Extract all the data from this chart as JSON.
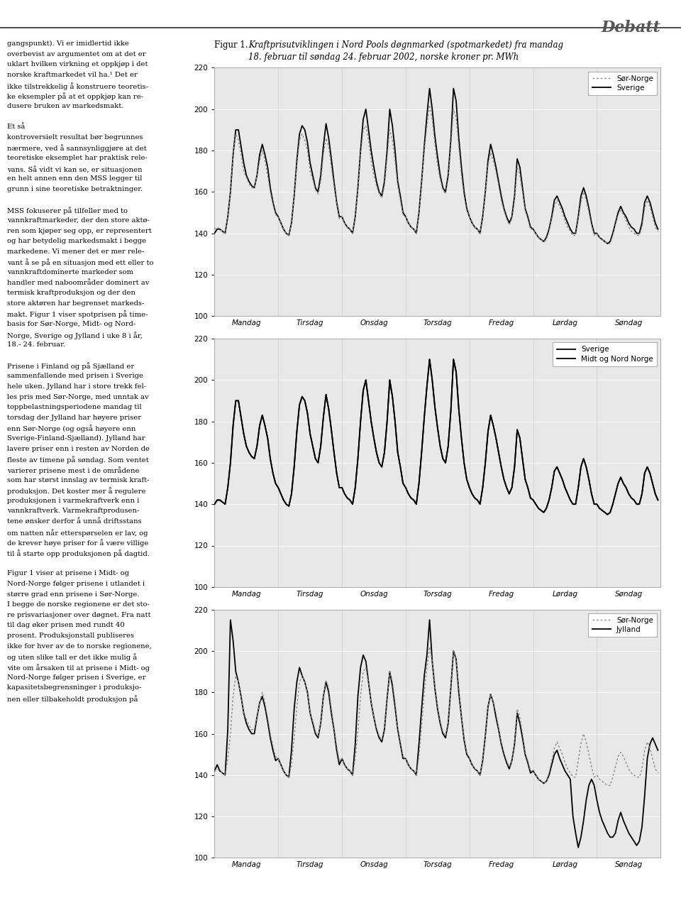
{
  "title_label": "Figur 1.",
  "title_text_line1": "Kraftprisutviklingen i Nord Pools døgnmarked (spotmarkedet) fra mandag",
  "title_text_line2": "18. februar til søndag 24. februar 2002, norske kroner pr. MWh",
  "days": [
    "Mandag",
    "Tirsdag",
    "Onsdag",
    "Torsdag",
    "Fredag",
    "Lørdag",
    "Søndag"
  ],
  "days_chart1": [
    "Mandag",
    "Tirsdag",
    "Onsdag",
    "Torsdag",
    "Fredag",
    "Lørdag",
    "Søndag"
  ],
  "days_chart2": [
    "Mandag",
    "Tirsdag",
    "Onsdag",
    "Torsdag",
    "Fredag",
    "Lørdag",
    "Søndag"
  ],
  "days_chart3": [
    "Mandag",
    "Tirsdag",
    "Onsdag",
    "Torsdag",
    "Fredag",
    "Lørdag",
    "Søndag"
  ],
  "ylim": [
    100,
    220
  ],
  "yticks": [
    100,
    120,
    140,
    160,
    180,
    200,
    220
  ],
  "background_color": "#ffffff",
  "plot_bg_color": "#e8e8e8",
  "grid_color": "#ffffff",
  "solid_color": "#000000",
  "dotted_color": "#888888",
  "plot1_legend": [
    "Sør-Norge",
    "Sverige"
  ],
  "plot1_s1_style": "dotted",
  "plot1_s2_style": "solid",
  "plot2_legend": [
    "Sverige",
    "Midt og Nord Norge"
  ],
  "plot2_s1_style": "solid",
  "plot2_s2_style": "solid",
  "plot3_legend": [
    "Sør-Norge",
    "Jylland"
  ],
  "plot3_s1_style": "dotted",
  "plot3_s2_style": "solid",
  "left_col_texts": [
    "gangspunkt). Vi er imidlertid ikke",
    "overbevist av argumentet om at det er",
    "uklart hvilken virkning et oppkjøp i det",
    "norske kraftmarkedet vil ha.¹ Det er",
    "ikke tilstrekkelig å konstruere teoretis-",
    "ke eksempler på at et oppkjøp kan re-",
    "dusere bruken av markedsmakt.",
    "",
    "Et så",
    "kontroversielt resultat bør begrunnes",
    "nærmere, ved å sannsynliggjøre at det",
    "teoretiske eksemplet har praktisk rele-",
    "vans. Så vidt vi kan se, er situasjonen",
    "en helt annen enn den MSS legger til",
    "grunn i sine teoretiske betraktninger.",
    "",
    "MSS fokuserer på tilfeller med to",
    "vannkraftmarkeder, der den store aktø-",
    "ren som kjøper seg opp, er representert",
    "og har betydelig markedsmakt i begge",
    "markedene. Vi mener det er mer rele-",
    "vant å se på en situasjon med ett eller to",
    "vannkraftdominerte markeder som",
    "handler med naboområder dominert av",
    "termisk kraftproduksjon og der den",
    "store aktøren har begrenset markeds-",
    "makt. Figur 1 viser spotprisen på time-",
    "basis for Sør-Norge, Midt- og Nord-",
    "Norge, Sverige og Jylland i uke 8 i år,",
    "18.- 24. februar.",
    "",
    "Prisene i Finland og på Sjælland er",
    "sammenfallende med prisen i Sverige",
    "hele uken. Jylland har i store trekk fel-",
    "les pris med Sør-Norge, med unntak av",
    "toppbelastningsperiodene mandag til",
    "torsdag der Jylland har høyere priser",
    "enn Sør-Norge (og også høyere enn",
    "Sverige-Finland-Sjælland). Jylland har",
    "lavere priser enn i resten av Norden de",
    "fleste av timene på søndag. Som ventet",
    "varierer prisene mest i de områdene",
    "som har størst innslag av termisk kraft-",
    "produksjon. Det koster mer å regulere",
    "produksjonen i varmekraftverk enn i",
    "vannkraftverk. Varmekraftprodusen-",
    "tene ønsker derfor å unnå driftsstans",
    "om natten når etterspørselen er lav, og",
    "de krever høye priser for å være villige",
    "til å starte opp produksjonen på dagtid.",
    "",
    "Figur 1 viser at prisene i Midt- og",
    "Nord-Norge følger prisene i utlandet i",
    "større grad enn prisene i Sør-Norge.",
    "I begge de norske regionene er det sto-",
    "re prisvariasjoner over døgnet. Fra natt",
    "til dag øker prisen med rundt 40",
    "prosent. Produksjonstall publiseres",
    "ikke for hver av de to norske regionene,",
    "og uten slike tall er det ikke mulig å",
    "vite om årsaken til at prisene i Midt- og",
    "Nord-Norge følger prisen i Sverige, er",
    "kapasitetsbegrensninger i produksjo-",
    "nen eller tilbakeholdt produksjon på"
  ],
  "debatt_header": "Debatt",
  "chart1_s1": [
    142,
    143,
    142,
    141,
    140,
    148,
    160,
    178,
    188,
    185,
    178,
    170,
    167,
    164,
    162,
    162,
    168,
    175,
    180,
    175,
    168,
    160,
    154,
    149,
    148,
    145,
    142,
    140,
    139,
    145,
    158,
    173,
    185,
    188,
    185,
    180,
    170,
    166,
    161,
    159,
    165,
    178,
    186,
    182,
    172,
    163,
    154,
    147,
    148,
    145,
    143,
    142,
    140,
    148,
    161,
    178,
    190,
    192,
    185,
    175,
    168,
    163,
    159,
    157,
    163,
    177,
    190,
    185,
    175,
    163,
    156,
    149,
    148,
    145,
    143,
    142,
    140,
    149,
    164,
    180,
    192,
    202,
    195,
    183,
    173,
    166,
    161,
    159,
    166,
    182,
    200,
    196,
    182,
    168,
    158,
    151,
    148,
    145,
    143,
    142,
    140,
    147,
    159,
    173,
    179,
    175,
    170,
    163,
    156,
    151,
    147,
    144,
    147,
    156,
    172,
    168,
    160,
    151,
    147,
    142,
    142,
    140,
    138,
    137,
    136,
    137,
    141,
    147,
    153,
    156,
    153,
    150,
    146,
    143,
    141,
    139,
    139,
    147,
    155,
    160,
    156,
    150,
    144,
    139,
    140,
    138,
    137,
    136,
    135,
    135,
    139,
    144,
    149,
    151,
    149,
    146,
    143,
    141,
    140,
    139,
    139,
    143,
    152,
    156,
    153,
    148,
    143,
    141
  ],
  "chart1_s2": [
    140,
    142,
    142,
    141,
    140,
    148,
    160,
    178,
    190,
    190,
    182,
    174,
    168,
    165,
    163,
    162,
    168,
    178,
    183,
    178,
    172,
    162,
    155,
    150,
    148,
    145,
    142,
    140,
    139,
    145,
    158,
    175,
    188,
    192,
    190,
    184,
    174,
    168,
    162,
    160,
    168,
    182,
    193,
    186,
    176,
    165,
    155,
    148,
    148,
    145,
    143,
    142,
    140,
    148,
    162,
    180,
    195,
    200,
    190,
    180,
    172,
    165,
    160,
    158,
    165,
    180,
    200,
    192,
    180,
    165,
    158,
    150,
    148,
    145,
    143,
    142,
    140,
    150,
    165,
    182,
    197,
    210,
    200,
    187,
    177,
    168,
    162,
    160,
    168,
    185,
    210,
    204,
    186,
    172,
    160,
    152,
    148,
    145,
    143,
    142,
    140,
    148,
    160,
    175,
    183,
    178,
    172,
    165,
    158,
    152,
    148,
    145,
    148,
    158,
    176,
    172,
    162,
    152,
    148,
    143,
    142,
    140,
    138,
    137,
    136,
    138,
    142,
    148,
    156,
    158,
    155,
    152,
    148,
    145,
    142,
    140,
    140,
    148,
    158,
    162,
    158,
    152,
    145,
    140,
    140,
    138,
    137,
    136,
    135,
    136,
    140,
    145,
    150,
    153,
    150,
    148,
    145,
    143,
    142,
    140,
    140,
    145,
    155,
    158,
    155,
    150,
    145,
    142
  ],
  "chart2_s1": [
    140,
    142,
    142,
    141,
    140,
    148,
    160,
    178,
    190,
    190,
    182,
    174,
    168,
    165,
    163,
    162,
    168,
    178,
    183,
    178,
    172,
    162,
    155,
    150,
    148,
    145,
    142,
    140,
    139,
    145,
    158,
    175,
    188,
    192,
    190,
    184,
    174,
    168,
    162,
    160,
    168,
    182,
    193,
    186,
    176,
    165,
    155,
    148,
    148,
    145,
    143,
    142,
    140,
    148,
    162,
    180,
    195,
    200,
    190,
    180,
    172,
    165,
    160,
    158,
    165,
    180,
    200,
    192,
    180,
    165,
    158,
    150,
    148,
    145,
    143,
    142,
    140,
    150,
    165,
    182,
    197,
    210,
    200,
    187,
    177,
    168,
    162,
    160,
    168,
    185,
    210,
    204,
    186,
    172,
    160,
    152,
    148,
    145,
    143,
    142,
    140,
    148,
    160,
    175,
    183,
    178,
    172,
    165,
    158,
    152,
    148,
    145,
    148,
    158,
    176,
    172,
    162,
    152,
    148,
    143,
    142,
    140,
    138,
    137,
    136,
    138,
    142,
    148,
    156,
    158,
    155,
    152,
    148,
    145,
    142,
    140,
    140,
    148,
    158,
    162,
    158,
    152,
    145,
    140,
    140,
    138,
    137,
    136,
    135,
    136,
    140,
    145,
    150,
    153,
    150,
    148,
    145,
    143,
    142,
    140,
    140,
    145,
    155,
    158,
    155,
    150,
    145,
    142
  ],
  "chart2_s2": [
    140,
    142,
    142,
    141,
    140,
    148,
    160,
    178,
    190,
    190,
    182,
    174,
    168,
    165,
    163,
    162,
    168,
    178,
    183,
    178,
    172,
    162,
    155,
    150,
    148,
    145,
    142,
    140,
    139,
    145,
    158,
    175,
    188,
    192,
    190,
    184,
    174,
    168,
    162,
    160,
    168,
    182,
    193,
    186,
    176,
    165,
    155,
    148,
    148,
    145,
    143,
    142,
    140,
    148,
    162,
    180,
    195,
    200,
    190,
    180,
    172,
    165,
    160,
    158,
    165,
    180,
    200,
    192,
    180,
    165,
    158,
    150,
    148,
    145,
    143,
    142,
    140,
    150,
    165,
    182,
    197,
    210,
    200,
    187,
    177,
    168,
    162,
    160,
    168,
    185,
    210,
    204,
    186,
    172,
    160,
    152,
    148,
    145,
    143,
    142,
    140,
    148,
    160,
    175,
    183,
    178,
    172,
    165,
    158,
    152,
    148,
    145,
    148,
    158,
    176,
    172,
    162,
    152,
    148,
    143,
    142,
    140,
    138,
    137,
    136,
    138,
    142,
    148,
    156,
    158,
    155,
    152,
    148,
    145,
    142,
    140,
    140,
    148,
    158,
    162,
    158,
    152,
    145,
    140,
    140,
    138,
    137,
    136,
    135,
    136,
    140,
    145,
    150,
    153,
    150,
    148,
    145,
    143,
    142,
    140,
    140,
    145,
    155,
    158,
    155,
    150,
    145,
    142
  ],
  "chart3_s1": [
    142,
    143,
    142,
    141,
    140,
    148,
    160,
    178,
    188,
    185,
    178,
    170,
    167,
    164,
    162,
    162,
    168,
    175,
    180,
    175,
    168,
    160,
    154,
    149,
    148,
    145,
    142,
    140,
    139,
    145,
    158,
    173,
    185,
    188,
    185,
    180,
    170,
    166,
    161,
    159,
    165,
    178,
    186,
    182,
    172,
    163,
    154,
    147,
    148,
    145,
    143,
    142,
    140,
    148,
    161,
    178,
    190,
    192,
    185,
    175,
    168,
    163,
    159,
    157,
    163,
    177,
    190,
    185,
    175,
    163,
    156,
    149,
    148,
    145,
    143,
    142,
    140,
    149,
    164,
    180,
    192,
    202,
    195,
    183,
    173,
    166,
    161,
    159,
    166,
    182,
    200,
    196,
    182,
    168,
    158,
    151,
    148,
    145,
    143,
    142,
    140,
    147,
    159,
    173,
    179,
    175,
    170,
    163,
    156,
    151,
    147,
    144,
    147,
    156,
    172,
    168,
    160,
    151,
    147,
    142,
    142,
    140,
    138,
    137,
    136,
    137,
    141,
    147,
    153,
    156,
    153,
    150,
    146,
    143,
    141,
    139,
    139,
    147,
    155,
    160,
    156,
    150,
    144,
    139,
    140,
    138,
    137,
    136,
    135,
    135,
    139,
    144,
    149,
    151,
    149,
    146,
    143,
    141,
    140,
    139,
    139,
    143,
    152,
    156,
    153,
    148,
    143,
    141
  ],
  "chart3_s2": [
    142,
    145,
    142,
    141,
    140,
    162,
    215,
    205,
    190,
    185,
    178,
    170,
    165,
    162,
    160,
    160,
    168,
    175,
    178,
    173,
    166,
    158,
    152,
    147,
    148,
    145,
    142,
    140,
    139,
    152,
    172,
    185,
    192,
    188,
    185,
    180,
    170,
    165,
    160,
    158,
    165,
    178,
    185,
    180,
    170,
    162,
    152,
    145,
    148,
    145,
    143,
    142,
    140,
    155,
    178,
    192,
    198,
    195,
    185,
    175,
    168,
    162,
    158,
    156,
    162,
    177,
    190,
    183,
    173,
    162,
    155,
    148,
    148,
    145,
    143,
    142,
    140,
    155,
    172,
    188,
    198,
    215,
    195,
    182,
    172,
    165,
    160,
    158,
    165,
    182,
    200,
    196,
    180,
    168,
    157,
    150,
    148,
    145,
    143,
    142,
    140,
    147,
    159,
    173,
    179,
    175,
    168,
    162,
    155,
    150,
    146,
    143,
    147,
    155,
    170,
    165,
    158,
    150,
    146,
    141,
    142,
    140,
    138,
    137,
    136,
    137,
    140,
    145,
    150,
    152,
    148,
    145,
    142,
    140,
    138,
    120,
    112,
    105,
    110,
    118,
    128,
    135,
    138,
    135,
    128,
    122,
    118,
    115,
    112,
    110,
    110,
    112,
    118,
    122,
    118,
    115,
    112,
    110,
    108,
    106,
    108,
    115,
    130,
    148,
    155,
    158,
    155,
    152
  ]
}
